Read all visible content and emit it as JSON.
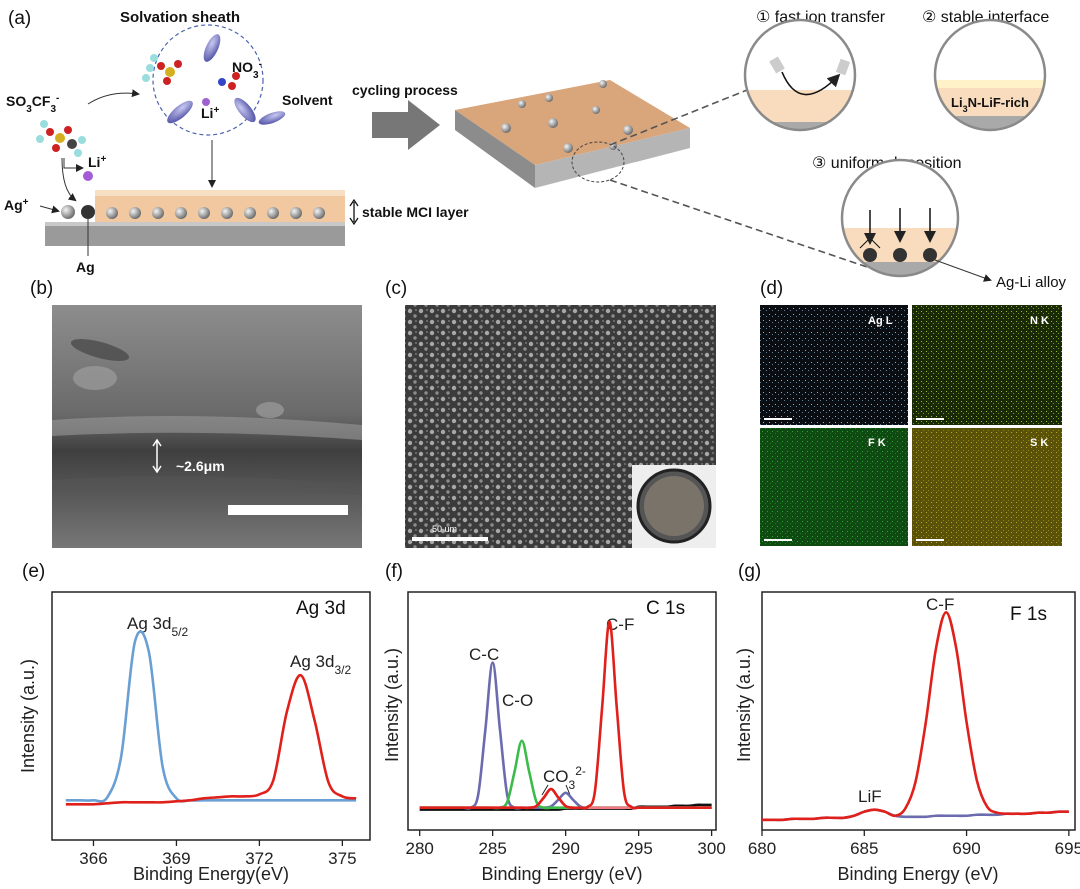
{
  "panel_labels": [
    "(a)",
    "(b)",
    "(c)",
    "(d)",
    "(e)",
    "(f)",
    "(g)"
  ],
  "diagram": {
    "solvation_sheath": "Solvation sheath",
    "anion": [
      "SO",
      "3",
      "CF",
      "3",
      "-"
    ],
    "nitrate": [
      "NO",
      "3",
      "-"
    ],
    "li_sheath": [
      "Li",
      "+"
    ],
    "solvent": "Solvent",
    "li_free": [
      "Li",
      "+"
    ],
    "ag_ion": [
      "Ag",
      "+"
    ],
    "ag": "Ag",
    "layer": "stable MCI layer",
    "cycling": "cycling process",
    "step1": "① fast ion transfer",
    "step2": "② stable interface",
    "step3": "③ uniform deposition",
    "interface": [
      "Li",
      "3",
      "N-LiF-rich"
    ],
    "alloy": "Ag-Li alloy"
  },
  "sem_b": {
    "thickness": "~2.6μm"
  },
  "sem_c": {
    "scale_bar": "50 um"
  },
  "eds_d": {
    "maps": [
      "Ag L",
      "N K",
      "F K",
      "S K"
    ]
  },
  "chart_data": [
    {
      "type": "line",
      "xlabel": "Binding Energy(eV)",
      "ylabel": "Intensity (a.u.)",
      "annotations": [
        "Ag 3d",
        [
          "Ag 3d",
          "5/2"
        ],
        [
          "Ag 3d",
          "3/2"
        ]
      ],
      "xlim": [
        364.5,
        376
      ],
      "xticks": [
        366,
        369,
        372,
        375
      ],
      "ylim": [
        -15,
        110
      ],
      "x": [
        365,
        365.5,
        366,
        366.5,
        367,
        367.5,
        368,
        368.5,
        369,
        369.5,
        370,
        370.5,
        371,
        371.5,
        372,
        372.5,
        373,
        373.5,
        374,
        374.5,
        375,
        375.5
      ],
      "series": [
        {
          "color": "#6a9fd4",
          "values": [
            5,
            5,
            5,
            6.5,
            27,
            85,
            80,
            22,
            6,
            5,
            5,
            5,
            5,
            5,
            5,
            5,
            5,
            5,
            5,
            5,
            5,
            5
          ]
        },
        {
          "color": "#e0201a",
          "values": [
            3,
            3,
            3,
            3.5,
            4,
            4,
            4,
            4,
            4.5,
            5,
            6,
            6.5,
            7,
            7,
            8,
            15,
            50,
            68,
            45,
            14,
            7,
            6
          ]
        }
      ]
    },
    {
      "type": "line",
      "xlabel": "Binding Energy (eV)",
      "ylabel": "Intensity (a.u.)",
      "annotations": [
        "C 1s",
        "C-C",
        "C-O",
        [
          "CO",
          "3",
          "2-"
        ],
        "C-F"
      ],
      "xlim": [
        279.2,
        300.3
      ],
      "xticks": [
        280,
        285,
        290,
        295,
        300
      ],
      "ylim": [
        -7,
        121
      ],
      "x": [
        280,
        280.5,
        281,
        281.5,
        282,
        282.5,
        283,
        283.5,
        284,
        284.5,
        285,
        285.5,
        286,
        286.5,
        287,
        287.5,
        288,
        288.5,
        289,
        289.5,
        290,
        290.5,
        291,
        291.5,
        292,
        292.5,
        293,
        293.5,
        294,
        294.5,
        295,
        295.5,
        296,
        296.5,
        297,
        297.5,
        298,
        298.5,
        299,
        299.5,
        300
      ],
      "series": [
        {
          "color": "#111111",
          "values": [
            4,
            4,
            4,
            4,
            4,
            4,
            4,
            4,
            4,
            4,
            4,
            4,
            4,
            4,
            4,
            4,
            4,
            4,
            4,
            4,
            4.5,
            4.5,
            4.5,
            4.5,
            4.5,
            4.5,
            4.5,
            4.5,
            4.5,
            4.5,
            5.5,
            5.5,
            5.5,
            5.5,
            5.5,
            6,
            6,
            6,
            6.5,
            6.5,
            6.5
          ]
        },
        {
          "color": "#6b6bb0",
          "values": [
            5,
            5,
            5,
            5,
            5,
            5,
            5,
            5,
            11.6,
            47,
            83,
            47,
            11.6,
            5,
            5,
            5,
            5,
            5,
            5.7,
            9.3,
            13,
            9.3,
            5.7,
            5,
            5,
            5,
            5,
            5,
            5,
            5,
            5,
            5,
            5,
            5,
            5,
            5,
            5,
            5,
            5,
            5,
            5
          ]
        },
        {
          "color": "#3cba4a",
          "values": [
            5,
            5,
            5,
            5,
            5,
            5,
            5,
            5,
            5,
            5,
            5,
            5,
            8.1,
            24.4,
            41,
            24.4,
            8.1,
            5,
            5,
            5,
            5,
            5,
            5,
            5,
            5,
            5,
            5,
            5,
            5,
            5,
            5,
            5,
            5,
            5,
            5,
            5,
            5,
            5,
            5,
            5,
            5
          ]
        },
        {
          "color": "#f07a80",
          "values": [
            5,
            5,
            5,
            5,
            5,
            5,
            5,
            5,
            5,
            5,
            5,
            5,
            5,
            5,
            5,
            5,
            5.9,
            10.4,
            15,
            10.4,
            5.9,
            5,
            5,
            5,
            5,
            5,
            5,
            5,
            5,
            5,
            5,
            5,
            5,
            5,
            5,
            5,
            5,
            5,
            5,
            5,
            5
          ]
        },
        {
          "color": "#e0201a",
          "values": [
            5,
            5,
            5,
            5,
            5,
            5,
            5,
            5,
            5,
            5,
            5,
            5,
            5,
            5,
            5,
            5,
            5.9,
            10.4,
            15,
            10.4,
            5.9,
            5,
            5,
            5.4,
            13.5,
            59,
            105,
            59,
            13.5,
            5.4,
            5,
            5,
            5,
            5,
            5,
            5,
            5,
            5,
            5,
            5,
            5
          ]
        }
      ]
    },
    {
      "type": "line",
      "xlabel": "Binding Energy (eV)",
      "ylabel": "Intensity (a.u.)",
      "annotations": [
        "F 1s",
        "C-F",
        "LiF"
      ],
      "xlim": [
        680,
        695.3
      ],
      "xticks": [
        680,
        685,
        690,
        695
      ],
      "ylim": [
        -2,
        115
      ],
      "x": [
        680,
        680.5,
        681,
        681.5,
        682,
        682.5,
        683,
        683.5,
        684,
        684.5,
        685,
        685.5,
        686,
        686.5,
        687,
        687.5,
        688,
        688.5,
        689,
        689.5,
        690,
        690.5,
        691,
        691.5,
        692,
        692.5,
        693,
        693.5,
        694,
        694.5,
        695
      ],
      "series": [
        {
          "color": "#6b6bb0",
          "values": [
            3,
            3,
            3,
            3.5,
            3.5,
            3.5,
            4,
            4,
            4,
            5,
            7,
            8,
            7,
            5,
            4.5,
            4.5,
            4.5,
            5,
            5,
            5,
            5,
            5.5,
            5.5,
            5.5,
            6,
            6,
            6,
            6.5,
            6.5,
            7,
            7
          ]
        },
        {
          "color": "#e0201a",
          "values": [
            3,
            3,
            3,
            3.5,
            3.5,
            3.5,
            4,
            4,
            4,
            5,
            7,
            8,
            7,
            5,
            8.5,
            21.5,
            50.5,
            87,
            105,
            87,
            51,
            22.5,
            9.5,
            6.5,
            6,
            6,
            6,
            6.5,
            6.5,
            7,
            7
          ]
        }
      ]
    }
  ]
}
